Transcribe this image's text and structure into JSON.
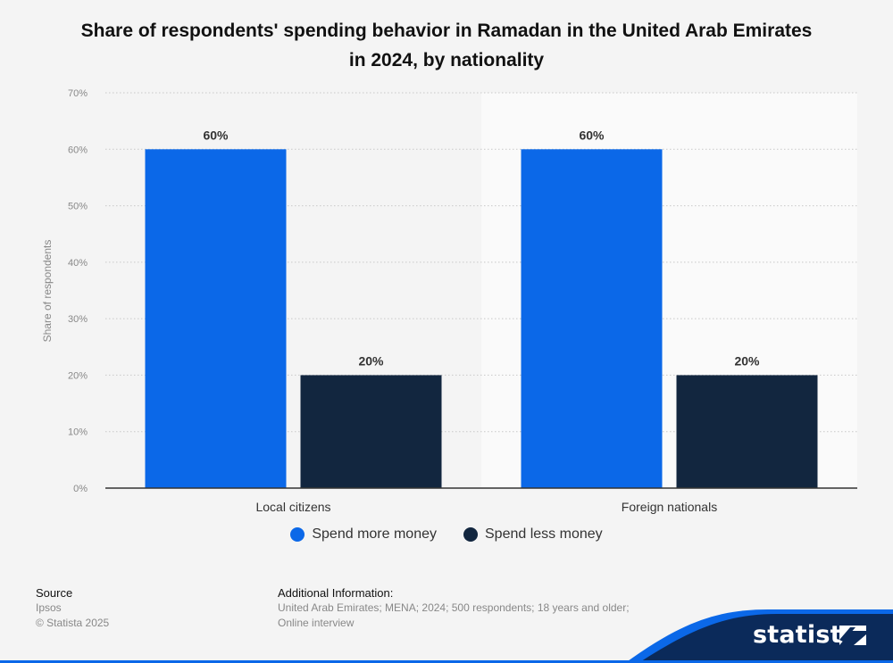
{
  "header": {
    "title_line1": "Share of respondents' spending behavior in Ramadan in the United Arab Emirates",
    "title_line2": "in 2024, by nationality"
  },
  "chart_data": {
    "type": "bar",
    "title": "Share of respondents' spending behavior in Ramadan in the United Arab Emirates in 2024, by nationality",
    "categories": [
      "Local citizens",
      "Foreign nationals"
    ],
    "series": [
      {
        "name": "Spend more money",
        "values": [
          60,
          60
        ],
        "color": "#0b68e8"
      },
      {
        "name": "Spend less money",
        "values": [
          20,
          20
        ],
        "color": "#12263f"
      }
    ],
    "value_labels": [
      "60%",
      "20%",
      "60%",
      "20%"
    ],
    "ylabel": "Share of respondents",
    "xlabel": "",
    "ylim": [
      0,
      70
    ],
    "yticks": [
      "0%",
      "10%",
      "20%",
      "30%",
      "40%",
      "50%",
      "60%",
      "70%"
    ],
    "grid": true,
    "legend_position": "bottom"
  },
  "legend": {
    "items": [
      {
        "label": "Spend more money",
        "color": "#0b68e8"
      },
      {
        "label": "Spend less money",
        "color": "#12263f"
      }
    ]
  },
  "footer": {
    "source_heading": "Source",
    "source_name": "Ipsos",
    "copyright": "© Statista 2025",
    "additional_heading": "Additional Information:",
    "additional_line1": "United Arab Emirates; MENA; 2024; 500 respondents; 18 years and older;",
    "additional_line2": "Online interview"
  },
  "branding": {
    "logo_text": "statista",
    "brand_color": "#0b2a5a",
    "accent_color": "#0b68e8"
  }
}
